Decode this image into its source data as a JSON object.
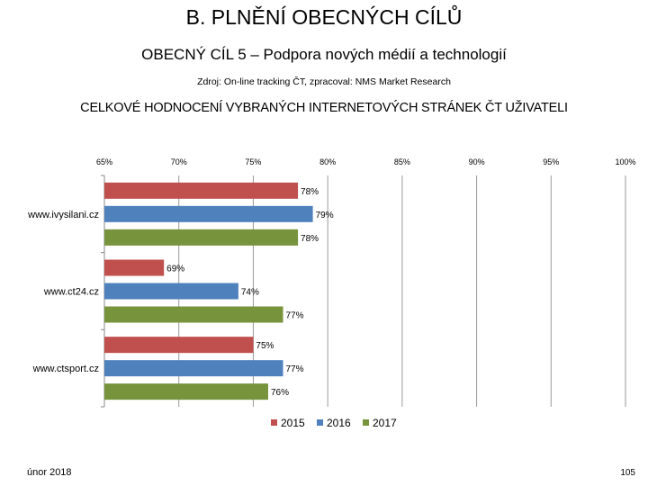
{
  "header": {
    "title": "B. PLNĚNÍ OBECNÝCH CÍLŮ",
    "subtitle": "OBECNÝ CÍL 5 – Podpora nových médií a technologií",
    "source": "Zdroj: On-line tracking ČT, zpracoval: NMS Market Research",
    "chart_heading": "CELKOVÉ HODNOCENÍ VYBRANÝCH INTERNETOVÝCH STRÁNEK ČT UŽIVATELI"
  },
  "chart_data": {
    "type": "bar",
    "orientation": "horizontal",
    "categories": [
      "www.ivysilani.cz",
      "www.ct24.cz",
      "www.ctsport.cz"
    ],
    "series": [
      {
        "name": "2015",
        "color": "#c0504d",
        "values": [
          78,
          69,
          75
        ],
        "labels": [
          "78%",
          "69%",
          "75%"
        ]
      },
      {
        "name": "2016",
        "color": "#4f81bd",
        "values": [
          79,
          74,
          77
        ],
        "labels": [
          "79%",
          "74%",
          "77%"
        ]
      },
      {
        "name": "2017",
        "color": "#77933c",
        "values": [
          78,
          77,
          76
        ],
        "labels": [
          "78%",
          "77%",
          "76%"
        ]
      }
    ],
    "xlim": [
      65,
      100
    ],
    "xticks": [
      65,
      70,
      75,
      80,
      85,
      90,
      95,
      100
    ],
    "xtick_labels": [
      "65%",
      "70%",
      "75%",
      "80%",
      "85%",
      "90%",
      "95%",
      "100%"
    ],
    "grid": true,
    "legend_position": "bottom"
  },
  "footer": {
    "date": "únor 2018",
    "page_number": "105"
  }
}
